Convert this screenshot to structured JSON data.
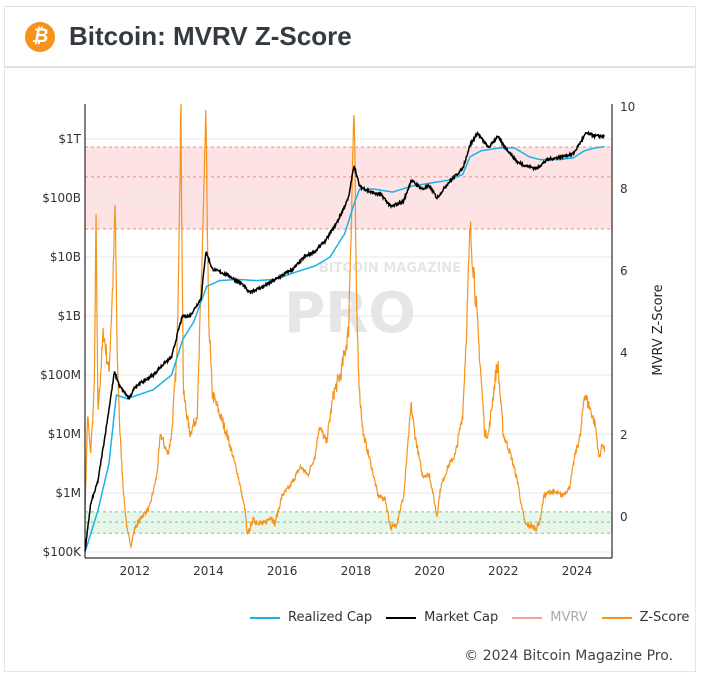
{
  "header": {
    "title": "Bitcoin: MVRV Z-Score",
    "icon": "bitcoin-logo-icon",
    "icon_glyph": "₿"
  },
  "watermark": {
    "line1": "BITCOIN MAGAZINE",
    "line2": "PRO"
  },
  "footer": {
    "copyright": "© 2024 Bitcoin Magazine Pro."
  },
  "colors": {
    "realized": "#1ab2e8",
    "market": "#000000",
    "mvrv": "#f4a0a0",
    "zscore": "#f7931a",
    "red_band": "#fde3e3",
    "green_band": "#e6f6ea"
  },
  "chart_data": {
    "type": "line",
    "title": "Bitcoin: MVRV Z-Score",
    "x_ticks": [
      "2012",
      "2014",
      "2016",
      "2018",
      "2020",
      "2022",
      "2024"
    ],
    "x_range": [
      2010.65,
      2024.95
    ],
    "left_axis": {
      "scale": "log",
      "range": [
        100000,
        3000000000000
      ],
      "ticks": [
        {
          "v": 100000,
          "label": "$100K"
        },
        {
          "v": 1000000,
          "label": "$1M"
        },
        {
          "v": 10000000,
          "label": "$10M"
        },
        {
          "v": 100000000,
          "label": "$100M"
        },
        {
          "v": 1000000000,
          "label": "$1B"
        },
        {
          "v": 10000000000,
          "label": "$10B"
        },
        {
          "v": 100000000000,
          "label": "$100B"
        },
        {
          "v": 1000000000000,
          "label": "$1T"
        }
      ]
    },
    "right_axis": {
      "label": "MVRV Z-Score",
      "range": [
        -1,
        10
      ],
      "ticks": [
        "0",
        "2",
        "4",
        "6",
        "8",
        "10"
      ]
    },
    "bands": {
      "red": [
        7,
        9
      ],
      "red_mid": 8.27,
      "green": [
        -0.42,
        0.1
      ],
      "green_mid": -0.15
    },
    "legend": [
      {
        "name": "Realized Cap",
        "color": "#1ab2e8",
        "hidden": false
      },
      {
        "name": "Market Cap",
        "color": "#000000",
        "hidden": false
      },
      {
        "name": "MVRV",
        "color": "#f4a0a0",
        "hidden": true
      },
      {
        "name": "Z-Score",
        "color": "#f7931a",
        "hidden": false
      }
    ],
    "series": [
      {
        "name": "Z-Score",
        "axis": "right",
        "points": [
          [
            2010.65,
            0
          ],
          [
            2010.72,
            2.5
          ],
          [
            2010.8,
            1.5
          ],
          [
            2010.9,
            3
          ],
          [
            2010.95,
            7.2
          ],
          [
            2011.0,
            2.5
          ],
          [
            2011.15,
            4.5
          ],
          [
            2011.3,
            3.5
          ],
          [
            2011.42,
            6
          ],
          [
            2011.47,
            7.6
          ],
          [
            2011.52,
            4
          ],
          [
            2011.6,
            2
          ],
          [
            2011.7,
            0.5
          ],
          [
            2011.8,
            -0.4
          ],
          [
            2011.9,
            -0.7
          ],
          [
            2012.0,
            -0.3
          ],
          [
            2012.2,
            0
          ],
          [
            2012.4,
            0.2
          ],
          [
            2012.6,
            1
          ],
          [
            2012.7,
            2
          ],
          [
            2012.9,
            1.5
          ],
          [
            2013.0,
            2
          ],
          [
            2013.15,
            4
          ],
          [
            2013.25,
            10
          ],
          [
            2013.32,
            3
          ],
          [
            2013.5,
            2
          ],
          [
            2013.7,
            2.5
          ],
          [
            2013.88,
            8
          ],
          [
            2013.93,
            9.6
          ],
          [
            2014.0,
            5
          ],
          [
            2014.1,
            3
          ],
          [
            2014.3,
            2.5
          ],
          [
            2014.5,
            2
          ],
          [
            2014.8,
            1
          ],
          [
            2015.0,
            0.1
          ],
          [
            2015.05,
            -0.5
          ],
          [
            2015.2,
            -0.1
          ],
          [
            2015.5,
            -0.2
          ],
          [
            2015.7,
            0
          ],
          [
            2015.8,
            -0.2
          ],
          [
            2016.0,
            0.5
          ],
          [
            2016.2,
            0.7
          ],
          [
            2016.5,
            1.2
          ],
          [
            2016.7,
            1
          ],
          [
            2016.9,
            1.5
          ],
          [
            2017.0,
            2.2
          ],
          [
            2017.2,
            1.8
          ],
          [
            2017.4,
            3
          ],
          [
            2017.6,
            3.5
          ],
          [
            2017.8,
            4.5
          ],
          [
            2017.95,
            10
          ],
          [
            2018.02,
            5
          ],
          [
            2018.1,
            3
          ],
          [
            2018.2,
            2
          ],
          [
            2018.4,
            1.3
          ],
          [
            2018.6,
            0.5
          ],
          [
            2018.8,
            0.4
          ],
          [
            2018.95,
            -0.3
          ],
          [
            2019.1,
            -0.2
          ],
          [
            2019.3,
            0.5
          ],
          [
            2019.5,
            2.7
          ],
          [
            2019.6,
            2
          ],
          [
            2019.8,
            1
          ],
          [
            2020.0,
            1
          ],
          [
            2020.2,
            0
          ],
          [
            2020.3,
            0.7
          ],
          [
            2020.5,
            1.2
          ],
          [
            2020.7,
            1.5
          ],
          [
            2020.9,
            2.5
          ],
          [
            2021.0,
            4.5
          ],
          [
            2021.1,
            7
          ],
          [
            2021.2,
            6
          ],
          [
            2021.35,
            4
          ],
          [
            2021.5,
            2
          ],
          [
            2021.6,
            2
          ],
          [
            2021.8,
            3.5
          ],
          [
            2021.85,
            3.7
          ],
          [
            2022.0,
            2
          ],
          [
            2022.2,
            1.5
          ],
          [
            2022.4,
            0.8
          ],
          [
            2022.5,
            0.2
          ],
          [
            2022.6,
            -0.2
          ],
          [
            2022.9,
            -0.3
          ],
          [
            2023.0,
            -0.1
          ],
          [
            2023.1,
            0.5
          ],
          [
            2023.3,
            0.6
          ],
          [
            2023.6,
            0.5
          ],
          [
            2023.8,
            0.7
          ],
          [
            2023.95,
            1.5
          ],
          [
            2024.1,
            2
          ],
          [
            2024.2,
            3
          ],
          [
            2024.4,
            2.5
          ],
          [
            2024.5,
            2.2
          ],
          [
            2024.6,
            1.4
          ],
          [
            2024.7,
            1.8
          ],
          [
            2024.75,
            1.6
          ]
        ]
      },
      {
        "name": "Market Cap",
        "axis": "left",
        "log10": true,
        "points": [
          [
            2010.65,
            5.0
          ],
          [
            2010.8,
            5.8
          ],
          [
            2011.0,
            6.2
          ],
          [
            2011.2,
            7.0
          ],
          [
            2011.45,
            8.05
          ],
          [
            2011.6,
            7.8
          ],
          [
            2011.85,
            7.6
          ],
          [
            2012.0,
            7.8
          ],
          [
            2012.5,
            8.0
          ],
          [
            2012.8,
            8.2
          ],
          [
            2013.0,
            8.3
          ],
          [
            2013.2,
            8.8
          ],
          [
            2013.3,
            9.0
          ],
          [
            2013.5,
            9.0
          ],
          [
            2013.8,
            9.3
          ],
          [
            2013.93,
            10.1
          ],
          [
            2014.1,
            9.8
          ],
          [
            2014.5,
            9.7
          ],
          [
            2014.9,
            9.55
          ],
          [
            2015.1,
            9.4
          ],
          [
            2015.5,
            9.5
          ],
          [
            2015.9,
            9.65
          ],
          [
            2016.3,
            9.8
          ],
          [
            2016.6,
            10.0
          ],
          [
            2016.9,
            10.1
          ],
          [
            2017.2,
            10.3
          ],
          [
            2017.5,
            10.6
          ],
          [
            2017.8,
            11.0
          ],
          [
            2017.95,
            11.56
          ],
          [
            2018.1,
            11.2
          ],
          [
            2018.4,
            11.1
          ],
          [
            2018.7,
            11.05
          ],
          [
            2018.95,
            10.85
          ],
          [
            2019.3,
            10.95
          ],
          [
            2019.5,
            11.3
          ],
          [
            2019.8,
            11.15
          ],
          [
            2020.0,
            11.2
          ],
          [
            2020.2,
            11.0
          ],
          [
            2020.5,
            11.25
          ],
          [
            2020.9,
            11.5
          ],
          [
            2021.1,
            11.9
          ],
          [
            2021.3,
            12.1
          ],
          [
            2021.6,
            11.85
          ],
          [
            2021.85,
            12.05
          ],
          [
            2022.0,
            11.9
          ],
          [
            2022.4,
            11.6
          ],
          [
            2022.6,
            11.55
          ],
          [
            2022.9,
            11.5
          ],
          [
            2023.2,
            11.65
          ],
          [
            2023.6,
            11.7
          ],
          [
            2023.9,
            11.75
          ],
          [
            2024.1,
            11.95
          ],
          [
            2024.25,
            12.1
          ],
          [
            2024.5,
            12.05
          ],
          [
            2024.75,
            12.05
          ]
        ]
      },
      {
        "name": "Realized Cap",
        "axis": "left",
        "log10": true,
        "points": [
          [
            2010.65,
            5.0
          ],
          [
            2011.0,
            5.7
          ],
          [
            2011.3,
            6.5
          ],
          [
            2011.5,
            7.66
          ],
          [
            2011.8,
            7.6
          ],
          [
            2012.5,
            7.75
          ],
          [
            2013.0,
            8.0
          ],
          [
            2013.3,
            8.6
          ],
          [
            2013.6,
            8.9
          ],
          [
            2013.95,
            9.5
          ],
          [
            2014.3,
            9.6
          ],
          [
            2014.8,
            9.62
          ],
          [
            2015.3,
            9.6
          ],
          [
            2015.8,
            9.62
          ],
          [
            2016.4,
            9.75
          ],
          [
            2016.9,
            9.85
          ],
          [
            2017.3,
            10.0
          ],
          [
            2017.7,
            10.4
          ],
          [
            2017.95,
            10.9
          ],
          [
            2018.1,
            11.15
          ],
          [
            2018.5,
            11.15
          ],
          [
            2019.0,
            11.1
          ],
          [
            2019.5,
            11.2
          ],
          [
            2020.0,
            11.25
          ],
          [
            2020.5,
            11.3
          ],
          [
            2020.9,
            11.4
          ],
          [
            2021.1,
            11.7
          ],
          [
            2021.4,
            11.8
          ],
          [
            2021.9,
            11.85
          ],
          [
            2022.3,
            11.85
          ],
          [
            2022.7,
            11.7
          ],
          [
            2023.0,
            11.65
          ],
          [
            2023.5,
            11.65
          ],
          [
            2023.9,
            11.68
          ],
          [
            2024.2,
            11.8
          ],
          [
            2024.5,
            11.85
          ],
          [
            2024.75,
            11.87
          ]
        ]
      }
    ]
  }
}
